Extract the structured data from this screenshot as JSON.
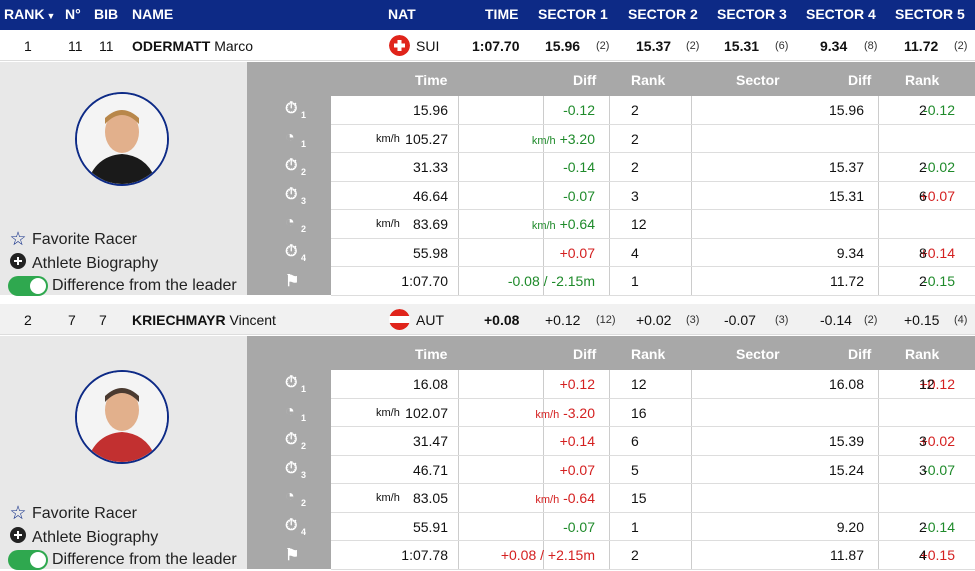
{
  "header": {
    "rank": "RANK",
    "rank_sort_icon": "sort-down-icon",
    "no": "N°",
    "bib": "BIB",
    "name": "NAME",
    "nat": "NAT",
    "time": "TIME",
    "s1": "SECTOR 1",
    "s2": "SECTOR 2",
    "s3": "SECTOR 3",
    "s4": "SECTOR 4",
    "s5": "SECTOR 5"
  },
  "detail_header": {
    "time": "Time",
    "diff": "Diff",
    "rank": "Rank",
    "sector": "Sector",
    "diff2": "Diff",
    "rank2": "Rank"
  },
  "options": {
    "favorite": "Favorite Racer",
    "bio": "Athlete Biography",
    "diff": "Difference from the leader"
  },
  "colors": {
    "header_bg": "#0d2a86",
    "positive": "#1e8a2a",
    "negative": "#d42020",
    "toggle": "#2fa84f"
  },
  "racers": [
    {
      "rank": "1",
      "no": "11",
      "bib": "11",
      "last": "ODERMATT",
      "first": "Marco",
      "nat": "SUI",
      "time": "1:07.70",
      "sectors": [
        {
          "v": "15.96",
          "r": "(2)"
        },
        {
          "v": "15.37",
          "r": "(2)"
        },
        {
          "v": "15.31",
          "r": "(6)"
        },
        {
          "v": "9.34",
          "r": "(8)"
        },
        {
          "v": "11.72",
          "r": "(2)"
        }
      ],
      "rows": [
        {
          "icon": "stopwatch-icon",
          "sub": "1",
          "unit": "",
          "time": "15.96",
          "dunit": "",
          "diff": "-0.12",
          "dc": "g",
          "rank": "2",
          "sector": "15.96",
          "sdiff": "-0.12",
          "sdc": "g",
          "srank": "2"
        },
        {
          "icon": "speedometer-icon",
          "sub": "1",
          "unit": "km/h",
          "time": "105.27",
          "dunit": "km/h",
          "diff": "+3.20",
          "dc": "g",
          "rank": "2",
          "sector": "",
          "sdiff": "",
          "sdc": "",
          "srank": ""
        },
        {
          "icon": "stopwatch-icon",
          "sub": "2",
          "unit": "",
          "time": "31.33",
          "dunit": "",
          "diff": "-0.14",
          "dc": "g",
          "rank": "2",
          "sector": "15.37",
          "sdiff": "-0.02",
          "sdc": "g",
          "srank": "2"
        },
        {
          "icon": "stopwatch-icon",
          "sub": "3",
          "unit": "",
          "time": "46.64",
          "dunit": "",
          "diff": "-0.07",
          "dc": "g",
          "rank": "3",
          "sector": "15.31",
          "sdiff": "+0.07",
          "sdc": "r",
          "srank": "6"
        },
        {
          "icon": "speedometer-icon",
          "sub": "2",
          "unit": "km/h",
          "time": "83.69",
          "dunit": "km/h",
          "diff": "+0.64",
          "dc": "g",
          "rank": "12",
          "sector": "",
          "sdiff": "",
          "sdc": "",
          "srank": ""
        },
        {
          "icon": "stopwatch-icon",
          "sub": "4",
          "unit": "",
          "time": "55.98",
          "dunit": "",
          "diff": "+0.07",
          "dc": "r",
          "rank": "4",
          "sector": "9.34",
          "sdiff": "+0.14",
          "sdc": "r",
          "srank": "8"
        },
        {
          "icon": "finish-flag-icon",
          "sub": "",
          "unit": "",
          "time": "1:07.70",
          "dunit": "",
          "diff": "-0.08 / -2.15m",
          "dc": "g",
          "rank": "1",
          "sector": "11.72",
          "sdiff": "-0.15",
          "sdc": "g",
          "srank": "2"
        }
      ]
    },
    {
      "rank": "2",
      "no": "7",
      "bib": "7",
      "last": "KRIECHMAYR",
      "first": "Vincent",
      "nat": "AUT",
      "time": "+0.08",
      "sectors": [
        {
          "v": "+0.12",
          "r": "(12)"
        },
        {
          "v": "+0.02",
          "r": "(3)"
        },
        {
          "v": "-0.07",
          "r": "(3)"
        },
        {
          "v": "-0.14",
          "r": "(2)"
        },
        {
          "v": "+0.15",
          "r": "(4)"
        }
      ],
      "rows": [
        {
          "icon": "stopwatch-icon",
          "sub": "1",
          "unit": "",
          "time": "16.08",
          "dunit": "",
          "diff": "+0.12",
          "dc": "r",
          "rank": "12",
          "sector": "16.08",
          "sdiff": "+0.12",
          "sdc": "r",
          "srank": "12"
        },
        {
          "icon": "speedometer-icon",
          "sub": "1",
          "unit": "km/h",
          "time": "102.07",
          "dunit": "km/h",
          "diff": "-3.20",
          "dc": "r",
          "rank": "16",
          "sector": "",
          "sdiff": "",
          "sdc": "",
          "srank": ""
        },
        {
          "icon": "stopwatch-icon",
          "sub": "2",
          "unit": "",
          "time": "31.47",
          "dunit": "",
          "diff": "+0.14",
          "dc": "r",
          "rank": "6",
          "sector": "15.39",
          "sdiff": "+0.02",
          "sdc": "r",
          "srank": "3"
        },
        {
          "icon": "stopwatch-icon",
          "sub": "3",
          "unit": "",
          "time": "46.71",
          "dunit": "",
          "diff": "+0.07",
          "dc": "r",
          "rank": "5",
          "sector": "15.24",
          "sdiff": "-0.07",
          "sdc": "g",
          "srank": "3"
        },
        {
          "icon": "speedometer-icon",
          "sub": "2",
          "unit": "km/h",
          "time": "83.05",
          "dunit": "km/h",
          "diff": "-0.64",
          "dc": "r",
          "rank": "15",
          "sector": "",
          "sdiff": "",
          "sdc": "",
          "srank": ""
        },
        {
          "icon": "stopwatch-icon",
          "sub": "4",
          "unit": "",
          "time": "55.91",
          "dunit": "",
          "diff": "-0.07",
          "dc": "g",
          "rank": "1",
          "sector": "9.20",
          "sdiff": "-0.14",
          "sdc": "g",
          "srank": "2"
        },
        {
          "icon": "finish-flag-icon",
          "sub": "",
          "unit": "",
          "time": "1:07.78",
          "dunit": "",
          "diff": "+0.08 / +2.15m",
          "dc": "r",
          "rank": "2",
          "sector": "11.87",
          "sdiff": "+0.15",
          "sdc": "r",
          "srank": "4"
        }
      ]
    }
  ]
}
